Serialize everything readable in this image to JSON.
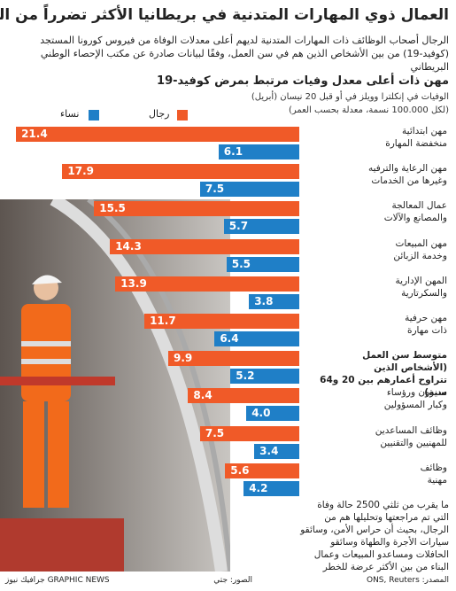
{
  "chart_data": {
    "type": "bar",
    "title": "العمال ذوي المهارات المتدنية في بريطانيا الأكثر تضرراً من الفيروس",
    "subtitle": "الرجال أصحاب الوظائف ذات المهارات المتدنية لديهم أعلى معدلات الوفاة من فيروس كورونا المستجد (كوفيد-19) من بين الأشخاص الذين هم في سن العمل، وفقًا لبيانات صادرة عن مكتب الإحصاء الوطني البريطاني",
    "chart_title": "مهن ذات أعلى معدل وفيات مرتبط بمرض كوفيد-19",
    "chart_subtitle": [
      "الوفيات في إنكلترا وويلز في أو قبل 20 نيسان (أبريل)",
      "(لكل 100.000 نسمة، معدلة بحسب العمر)"
    ],
    "categories": [
      "مهن ابتدائية\nمنخفضة المهارة",
      "مهن الرعاية والترفيه\nوغيرها من الخدمات",
      "عمال المعالجة\nوالمصانع والآلات",
      "مهن المبيعات\nوخدمة الزبائن",
      "المهن الإدارية\nوالسكرتارية",
      "مهن حرفية\nذات مهارة",
      "متوسط سن العمل\n(الأشخاص الذين\nتتراوح أعمارهم بين 20 و64 سنة)",
      "مديرون ورؤساء\nوكبار المسؤولين",
      "وظائف المساعدين\nللمهنيين والتقنيين",
      "وظائف\nمهنية"
    ],
    "highlight": 6,
    "series": [
      {
        "name": "رجال",
        "color": "#f05a28",
        "values": [
          21.4,
          17.9,
          15.5,
          14.3,
          13.9,
          11.7,
          9.9,
          8.4,
          7.5,
          5.6
        ]
      },
      {
        "name": "نساء",
        "color": "#1f7fc7",
        "values": [
          6.1,
          7.5,
          5.7,
          5.5,
          3.8,
          6.4,
          5.2,
          4.0,
          3.4,
          4.2
        ]
      }
    ],
    "value_labels": [
      [
        "21.4",
        "17.9",
        "15.5",
        "14.3",
        "13.9",
        "11.7",
        "9.9",
        "8.4",
        "7.5",
        "5.6"
      ],
      [
        "6.1",
        "7.5",
        "5.7",
        "5.5",
        "3.8",
        "6.4",
        "5.2",
        "4.0",
        "3.4",
        "4.2"
      ]
    ],
    "note": "ما يقرب من ثلثي 2500 حالة وفاة التي تم مراجعتها وتحليلها هم من الرجال، بحيث أن حراس الأمن، وسائقو سيارات الأجرة والطهاة وسائقو الحافلات ومساعدو المبيعات وعمال البناء من بين الأكثر عرضة للخطر",
    "source": "المصدر: ONS, Reuters",
    "photo_credit": "الصور: جتي",
    "brand": "GRAPHIC NEWS جرافيك نيوز"
  }
}
